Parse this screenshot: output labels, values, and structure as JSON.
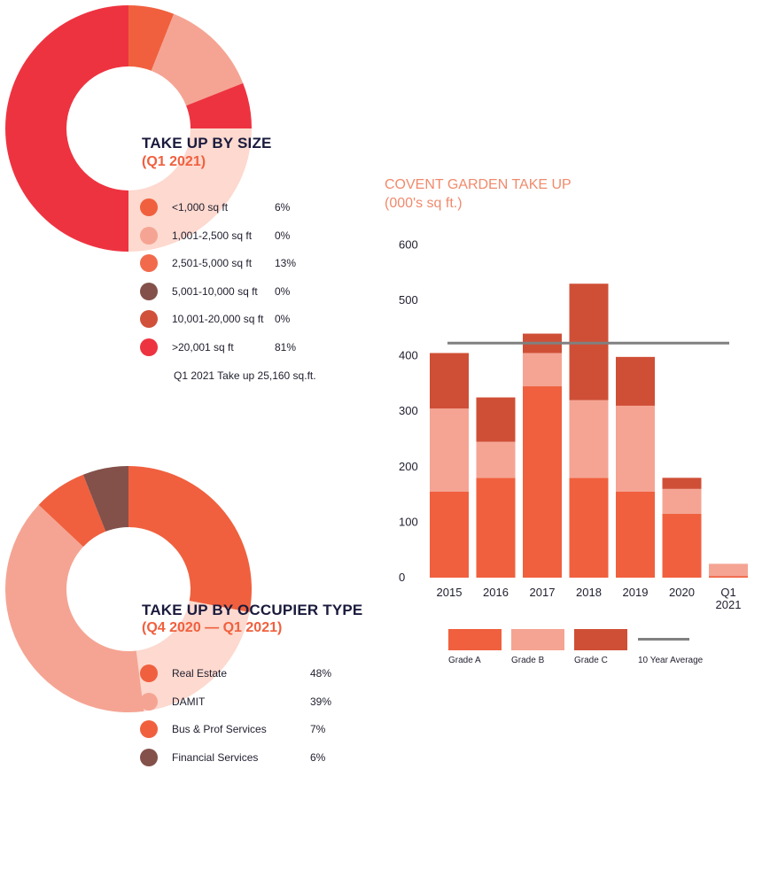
{
  "colors": {
    "orange": "#f0603e",
    "salmon": "#f5a493",
    "rust": "#cf4f36",
    "red": "#ee3340",
    "brown": "#83514a",
    "avg_line": "#808080",
    "title_navy": "#1a1a3d",
    "title_orange": "#f0603e"
  },
  "size_donut": {
    "title": "TAKE UP BY SIZE",
    "subtitle": "(Q1 2021)",
    "items": [
      {
        "label": "<1,000 sq ft",
        "value": "6%",
        "color": "#f0603e"
      },
      {
        "label": "1,001-2,500 sq ft",
        "value": "0%",
        "color": "#f5a493"
      },
      {
        "label": "2,501-5,000 sq ft",
        "value": "13%",
        "color": "#f26a4c"
      },
      {
        "label": "5,001-10,000 sq ft",
        "value": "0%",
        "color": "#83514a"
      },
      {
        "label": "10,001-20,000 sq ft",
        "value": "0%",
        "color": "#d1503a"
      },
      {
        "label": ">20,001 sq ft",
        "value": "81%",
        "color": "#ee3340"
      }
    ],
    "note": "Q1 2021 Take up 25,160 sq.ft."
  },
  "occupier_donut": {
    "title": "TAKE UP BY OCCUPIER TYPE",
    "subtitle": "(Q4 2020 — Q1 2021)",
    "items": [
      {
        "label": "Real Estate",
        "value": "48%",
        "color": "#f0603e"
      },
      {
        "label": "DAMIT",
        "value": "39%",
        "color": "#f5a493"
      },
      {
        "label": "Bus & Prof Services",
        "value": "7%",
        "color": "#f0603e"
      },
      {
        "label": "Financial Services",
        "value": "6%",
        "color": "#83514a"
      }
    ]
  },
  "chart_data": [
    {
      "type": "pie",
      "title": "TAKE UP BY SIZE",
      "subtitle": "(Q1 2021)",
      "labels": [
        "<1,000 sq ft",
        "1,001-2,500 sq ft",
        "2,501-5,000 sq ft",
        "5,001-10,000 sq ft",
        "10,001-20,000 sq ft",
        ">20,001 sq ft"
      ],
      "values": [
        6,
        0,
        13,
        0,
        0,
        81
      ]
    },
    {
      "type": "pie",
      "title": "TAKE UP BY OCCUPIER TYPE",
      "subtitle": "(Q4 2020 — Q1 2021)",
      "labels": [
        "Real Estate",
        "DAMIT",
        "Bus & Prof Services",
        "Financial Services"
      ],
      "values": [
        48,
        39,
        7,
        6
      ]
    },
    {
      "type": "bar",
      "stacked": true,
      "title": "COVENT GARDEN TAKE UP",
      "subtitle": "(000's sq ft.)",
      "categories": [
        "2015",
        "2016",
        "2017",
        "2018",
        "2019",
        "2020",
        "Q1 2021"
      ],
      "series": [
        {
          "name": "Grade A",
          "values": [
            155,
            180,
            345,
            180,
            155,
            115,
            3
          ],
          "color": "#f0603e"
        },
        {
          "name": "Grade B",
          "values": [
            150,
            65,
            60,
            140,
            155,
            45,
            22
          ],
          "color": "#f5a493"
        },
        {
          "name": "Grade C",
          "values": [
            100,
            80,
            35,
            210,
            88,
            20,
            0
          ],
          "color": "#cf4f36"
        }
      ],
      "reference_line": {
        "name": "10 Year Average",
        "value": 423,
        "color": "#808080"
      },
      "yticks": [
        0,
        100,
        200,
        300,
        400,
        500,
        600
      ],
      "ylim": [
        0,
        600
      ],
      "grid": false,
      "legend": "bottom"
    }
  ]
}
